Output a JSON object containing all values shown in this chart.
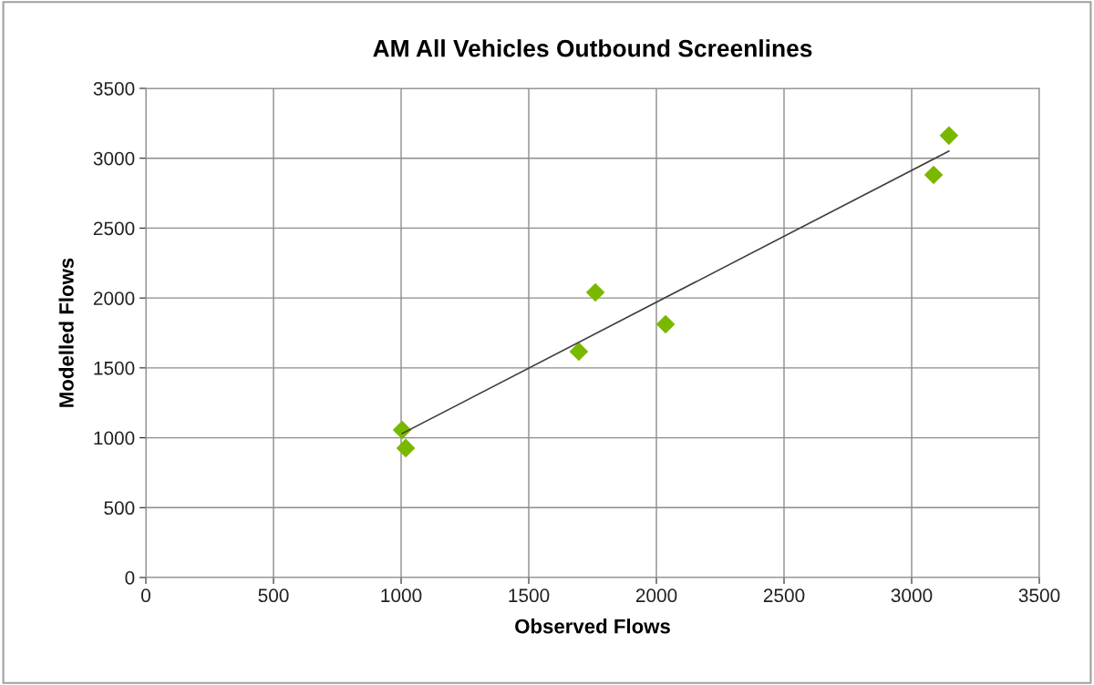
{
  "chart_data": {
    "type": "scatter",
    "title": "AM All Vehicles Outbound Screenlines",
    "xlabel": "Observed Flows",
    "ylabel": "Modelled Flows",
    "series": [
      {
        "color": "#7ab800",
        "marker": "diamond",
        "x": [
          1004,
          1018,
          1696,
          1761,
          2036,
          3086,
          3146
        ],
        "values": [
          1056,
          926,
          1617,
          2040,
          1812,
          2881,
          3162
        ]
      },
      {
        "type": "line",
        "color": "#404040",
        "marker": "none",
        "x": [
          1004,
          3146
        ],
        "values": [
          1030,
          3051
        ]
      }
    ],
    "xlim": [
      0,
      3500
    ],
    "ylim": [
      0,
      3500
    ],
    "xticks": [
      0,
      500,
      1000,
      1500,
      2000,
      2500,
      3000,
      3500
    ],
    "yticks": [
      0,
      500,
      1000,
      1500,
      2000,
      2500,
      3000,
      3500
    ],
    "grid": true,
    "legend": false
  }
}
